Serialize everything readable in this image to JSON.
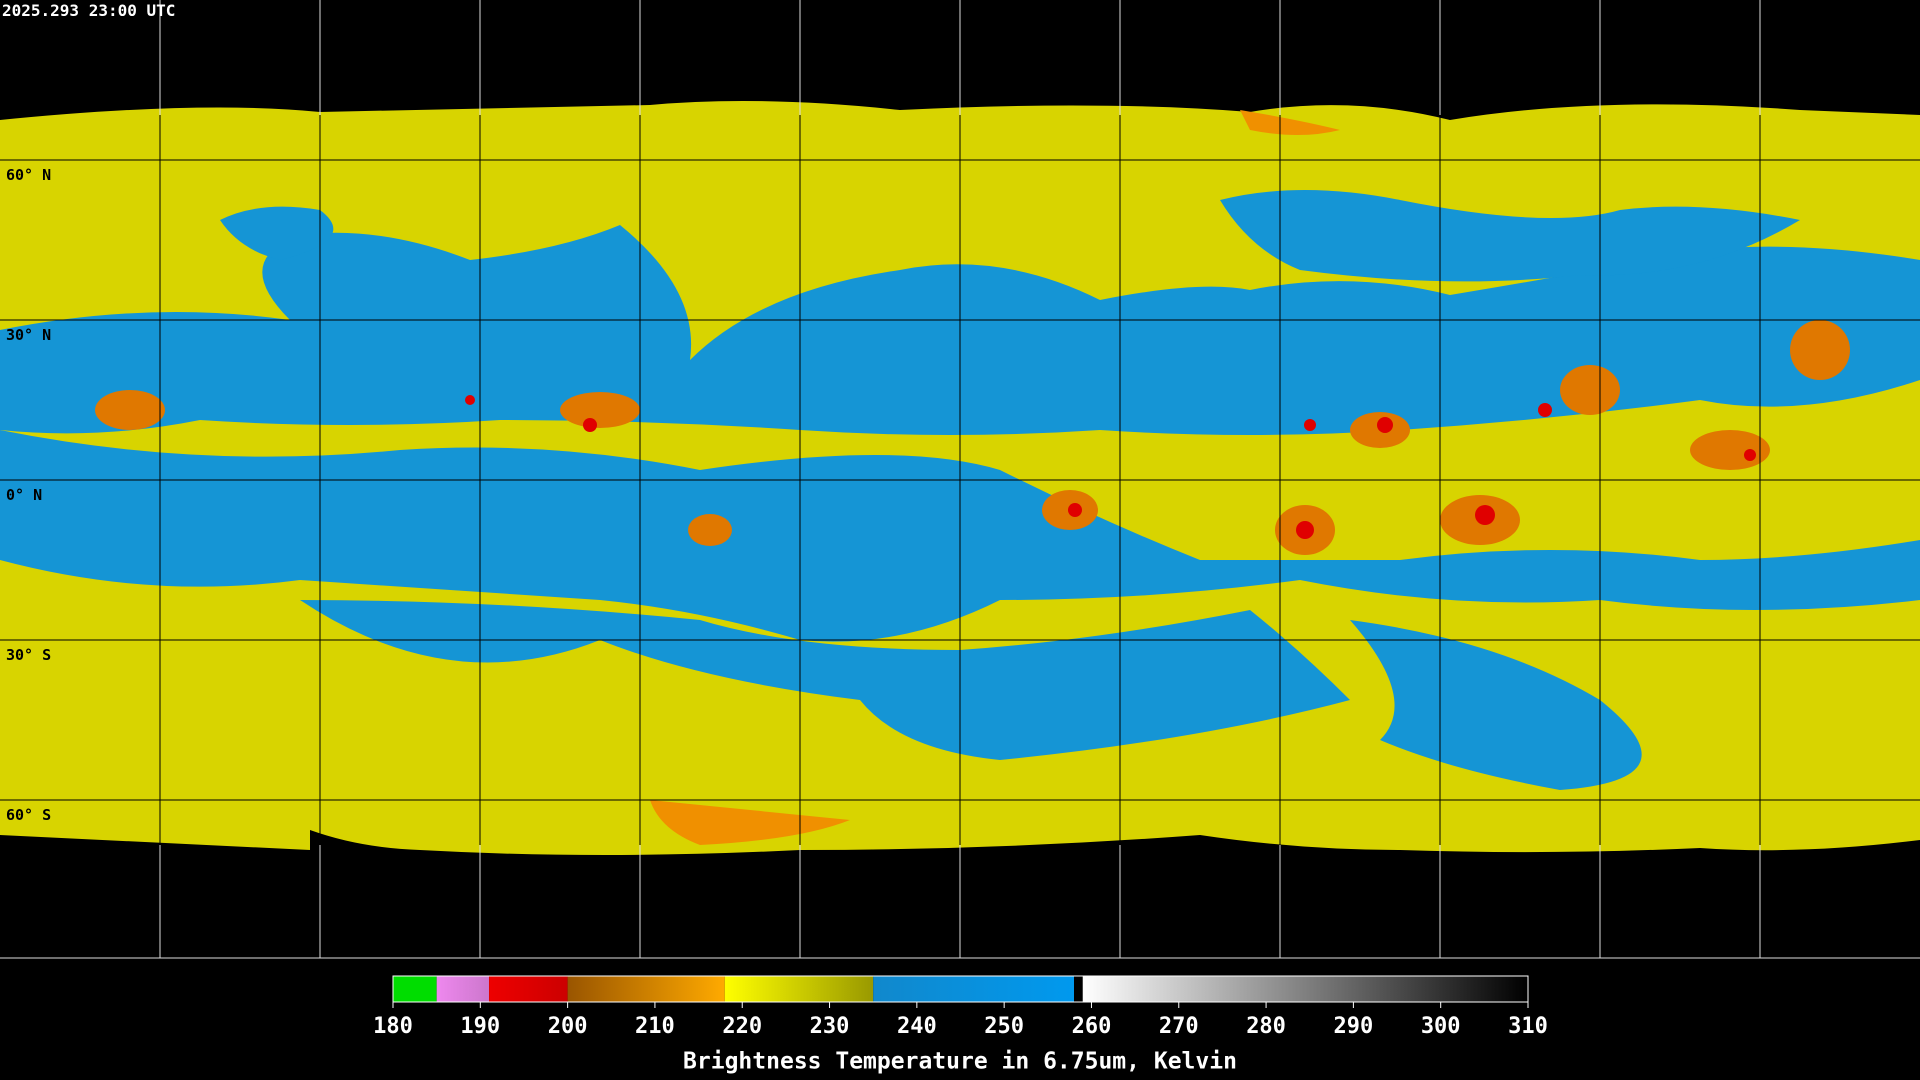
{
  "header": {
    "timestamp": "2025.293 23:00 UTC"
  },
  "map": {
    "lat_labels": [
      "60° N",
      "30° N",
      "0° N",
      "30° S",
      "60° S"
    ]
  },
  "colorbar": {
    "lim": [
      180,
      310
    ],
    "ticks": [
      180,
      190,
      200,
      210,
      220,
      230,
      240,
      250,
      260,
      270,
      280,
      290,
      300,
      310
    ],
    "segments": [
      {
        "from": 180,
        "to": 185,
        "colors": [
          "#00dd00",
          "#00dd00"
        ]
      },
      {
        "from": 185,
        "to": 191,
        "colors": [
          "#ee88ee",
          "#cc77cc"
        ]
      },
      {
        "from": 191,
        "to": 200,
        "colors": [
          "#ee0000",
          "#cc0000"
        ]
      },
      {
        "from": 200,
        "to": 218,
        "colors": [
          "#995500",
          "#ffaa00"
        ]
      },
      {
        "from": 218,
        "to": 235,
        "colors": [
          "#ffff00",
          "#999900"
        ]
      },
      {
        "from": 235,
        "to": 258,
        "colors": [
          "#1188cc",
          "#0099ee"
        ]
      },
      {
        "from": 259,
        "to": 310,
        "colors": [
          "#ffffff",
          "#000000"
        ]
      }
    ],
    "label": "Brightness Temperature in 6.75um, Kelvin"
  }
}
